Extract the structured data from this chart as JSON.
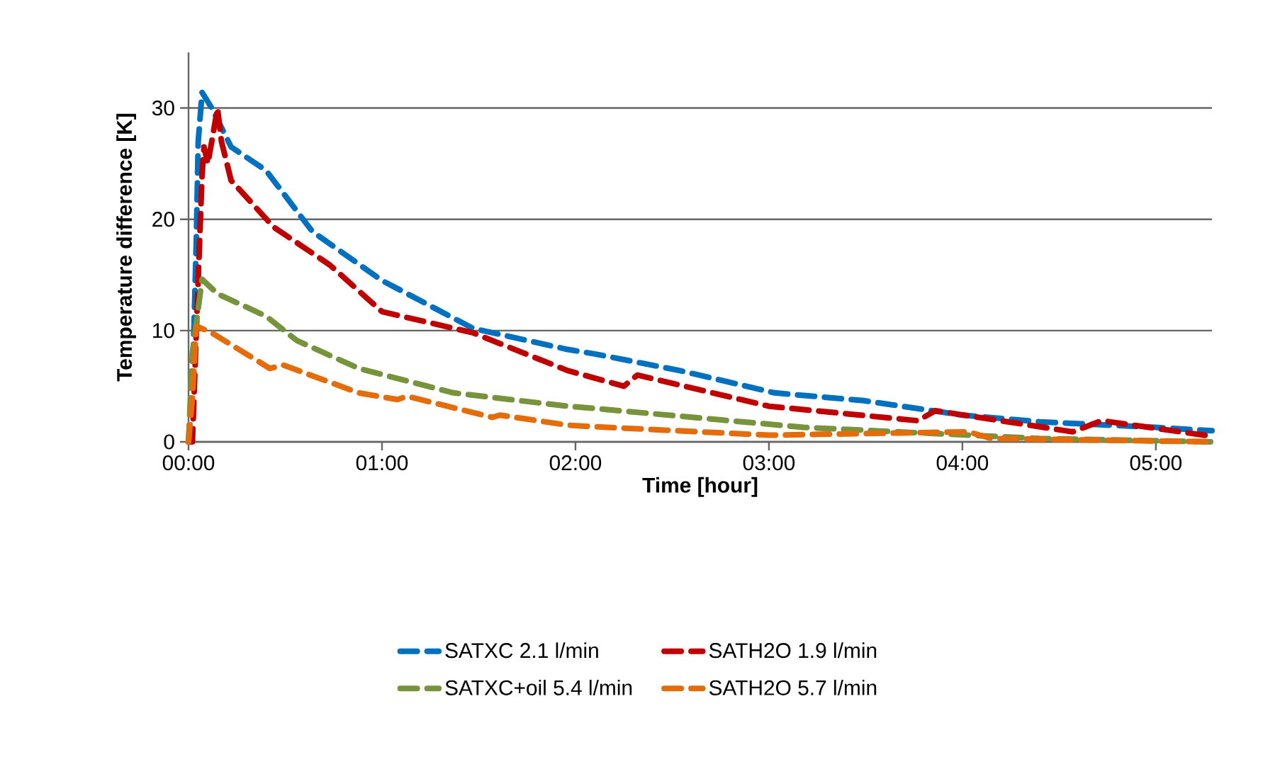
{
  "chart_data": {
    "type": "line",
    "xlabel": "Time [hour]",
    "ylabel": "Temperature difference [K]",
    "xlim": [
      0,
      5.29
    ],
    "ylim": [
      0,
      35
    ],
    "xticks": [
      {
        "value": 0,
        "label": "00:00"
      },
      {
        "value": 1,
        "label": "01:00"
      },
      {
        "value": 2,
        "label": "02:00"
      },
      {
        "value": 3,
        "label": "03:00"
      },
      {
        "value": 4,
        "label": "04:00"
      },
      {
        "value": 5,
        "label": "05:00"
      }
    ],
    "yticks": [
      0,
      10,
      20,
      30
    ],
    "grid": "y",
    "legend": "bottom",
    "line_style": "dashed",
    "series": [
      {
        "name": "SATXC 2.1 l/min",
        "color": "#0070c0",
        "x": [
          0,
          0.02,
          0.04,
          0.05,
          0.07,
          0.12,
          0.22,
          0.4,
          0.64,
          1.0,
          1.47,
          1.96,
          2.1,
          2.54,
          3.03,
          3.49,
          4.0,
          4.4,
          5.0,
          5.29
        ],
        "values": [
          0,
          5,
          18,
          27,
          31.4,
          30,
          26.5,
          24.4,
          18.9,
          14.5,
          10.2,
          8.3,
          7.9,
          6.4,
          4.4,
          3.7,
          2.4,
          1.8,
          1.3,
          1.0
        ]
      },
      {
        "name": "SATH2O 1.9 l/min",
        "color": "#c00000",
        "x": [
          0,
          0.02,
          0.05,
          0.07,
          0.08,
          0.1,
          0.12,
          0.15,
          0.17,
          0.22,
          0.44,
          0.73,
          1.0,
          1.47,
          1.96,
          2.25,
          2.32,
          3.0,
          3.77,
          3.86,
          4.57,
          4.72,
          5.29
        ],
        "values": [
          0,
          0,
          14.6,
          24,
          26.5,
          25,
          27,
          30,
          27,
          23.5,
          19.3,
          15.9,
          11.7,
          9.8,
          6.4,
          5.0,
          6.0,
          3.2,
          1.9,
          2.8,
          0.9,
          1.9,
          0.5
        ]
      },
      {
        "name": "SATXC+oil 5.4 l/min",
        "color": "#77933c",
        "x": [
          0,
          0.02,
          0.07,
          0.15,
          0.4,
          0.56,
          0.88,
          1.37,
          1.96,
          2.1,
          3.18,
          4.4,
          5.29
        ],
        "values": [
          0,
          8,
          14.6,
          13.3,
          11.3,
          9.1,
          6.6,
          4.4,
          3.2,
          3.0,
          1.3,
          0.3,
          0
        ]
      },
      {
        "name": "SATH2O 5.7 l/min",
        "color": "#e46c0a",
        "x": [
          0,
          0.02,
          0.04,
          0.12,
          0.42,
          0.49,
          0.88,
          1.08,
          1.13,
          1.57,
          1.61,
          1.96,
          2.05,
          3.0,
          4.03,
          4.15,
          5.29
        ],
        "values": [
          0,
          4,
          10.4,
          9.8,
          6.6,
          6.9,
          4.4,
          3.8,
          4.1,
          2.2,
          2.4,
          1.5,
          1.4,
          0.6,
          0.9,
          0.3,
          0
        ]
      }
    ]
  }
}
